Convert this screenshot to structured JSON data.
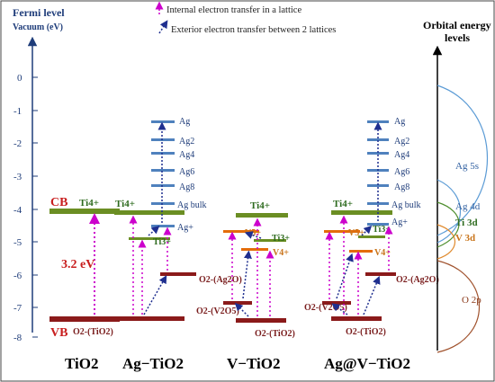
{
  "y_axis": {
    "title_line1": "Fermi level",
    "title_line2": "Vacuum (eV)",
    "ticks": [
      "0",
      "-1",
      "-2",
      "-3",
      "-4",
      "-5",
      "-6",
      "-7",
      "-8"
    ]
  },
  "legend": {
    "internal": "Internal electron transfer in a lattice",
    "exterior": "Exterior electron transfer between 2 lattices"
  },
  "right_axis": {
    "title_line1": "Orbital energy",
    "title_line2": "levels",
    "labels": [
      "Ag 5s",
      "Ag 4d",
      "Ti 3d",
      "V 3d",
      "O 2p"
    ]
  },
  "tio2": {
    "cb": "CB",
    "vb": "VB",
    "gap": "3.2 eV",
    "ti4": "Ti4+",
    "o2": "O2-(TiO2)"
  },
  "ag_levels": {
    "ag": "Ag",
    "ag2": "Ag2",
    "ag4": "Ag4",
    "ag6": "Ag6",
    "ag8": "Ag8",
    "bulk": "Ag bulk",
    "agplus": "Ag+"
  },
  "ions": {
    "ti3": "Ti3+",
    "v5": "V5+",
    "v4": "V4+",
    "o_ag2o": "O2-(Ag2O)",
    "o_v2o5": "O2-(V2O5)"
  },
  "bottom_labels": [
    "TiO2",
    "Ag−TiO2",
    "V−TiO2",
    "Ag@V−TiO2"
  ],
  "colors": {
    "axis": "#1f3d7a",
    "tio2_band": "#6b8e23",
    "vb_band": "#8b1a1a",
    "ag_level": "#4f81bd",
    "v_level": "#e46c0a",
    "internal_arrow": "#cc00cc",
    "exterior_arrow": "#1f2f8f",
    "ag_curve": "#5b9bd5",
    "ti_curve": "#4f8f2f",
    "v_curve": "#e08a2e",
    "o_curve": "#a0522d"
  }
}
